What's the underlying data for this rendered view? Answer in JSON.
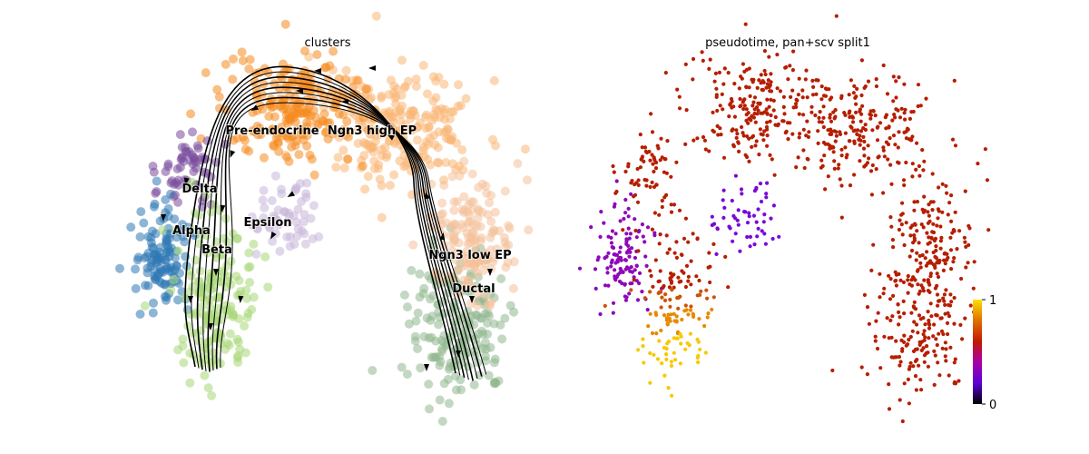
{
  "chart_data": [
    {
      "type": "scatter",
      "title": "clusters",
      "legend_placement": "on data",
      "grid": false,
      "axes_visible": false,
      "colors": {
        "Pre-endocrine": "#f58b1f",
        "Ngn3 high EP": "#f9b676",
        "Ngn3 low EP": "#f4c19a",
        "Ductal": "#92b890",
        "Epsilon": "#c9b6d8",
        "Delta": "#7a4d9c",
        "Alpha": "#2f78b4",
        "Beta": "#a8d777",
        "streamline": "#000000"
      },
      "clusters": [
        {
          "name": "Pre-endocrine",
          "label": "Pre-endocrine"
        },
        {
          "name": "Ngn3 high EP",
          "label": "Ngn3 high EP"
        },
        {
          "name": "Delta",
          "label": "Delta"
        },
        {
          "name": "Epsilon",
          "label": "Epsilon"
        },
        {
          "name": "Alpha",
          "label": "Alpha"
        },
        {
          "name": "Beta",
          "label": "Beta"
        },
        {
          "name": "Ngn3 low EP",
          "label": "Ngn3 low EP"
        },
        {
          "name": "Ductal",
          "label": "Ductal"
        }
      ],
      "overlay": "velocity streamlines"
    },
    {
      "type": "scatter",
      "title": "pseudotime, pan+scv split1",
      "grid": false,
      "axes_visible": false,
      "colorbar": {
        "min": 0,
        "max": 1,
        "tick_labels": [
          "0",
          "1"
        ],
        "colormap": "gnuplot",
        "stops": [
          "#000000",
          "#5a00d6",
          "#a800a8",
          "#c21a00",
          "#e07000",
          "#ffe000"
        ]
      },
      "dominant_value_color": "#b61e00",
      "low_value_color": "#8e08b8",
      "high_value_color": "#f8c800"
    }
  ]
}
